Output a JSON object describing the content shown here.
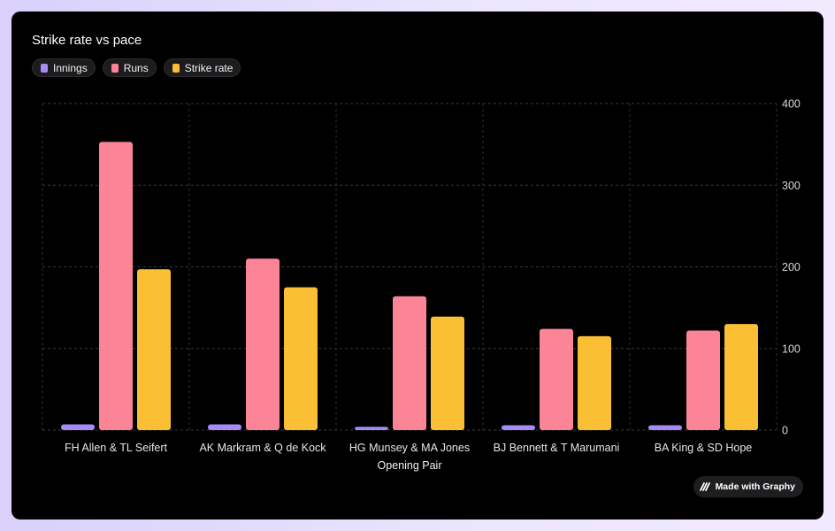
{
  "chart_data": {
    "type": "bar",
    "title": "Strike rate vs pace",
    "xlabel": "Opening Pair",
    "ylabel": "",
    "ylim": [
      0,
      400
    ],
    "yticks": [
      0,
      100,
      200,
      300,
      400
    ],
    "grid": true,
    "legend_position": "top-left",
    "categories": [
      "FH Allen & TL Seifert",
      "AK Markram & Q de Kock",
      "HG Munsey & MA Jones",
      "BJ Bennett & T Marumani",
      "BA King & SD Hope"
    ],
    "series": [
      {
        "name": "Innings",
        "color": "#a48bf5",
        "values": [
          7,
          7,
          4,
          6,
          6
        ]
      },
      {
        "name": "Runs",
        "color": "#fb8597",
        "values": [
          353,
          210,
          164,
          124,
          122
        ]
      },
      {
        "name": "Strike rate",
        "color": "#fbbf35",
        "values": [
          197,
          175,
          139,
          115,
          130
        ]
      }
    ]
  },
  "badge": {
    "label": "Made with Graphy",
    "icon": "graphy-logo-icon"
  }
}
